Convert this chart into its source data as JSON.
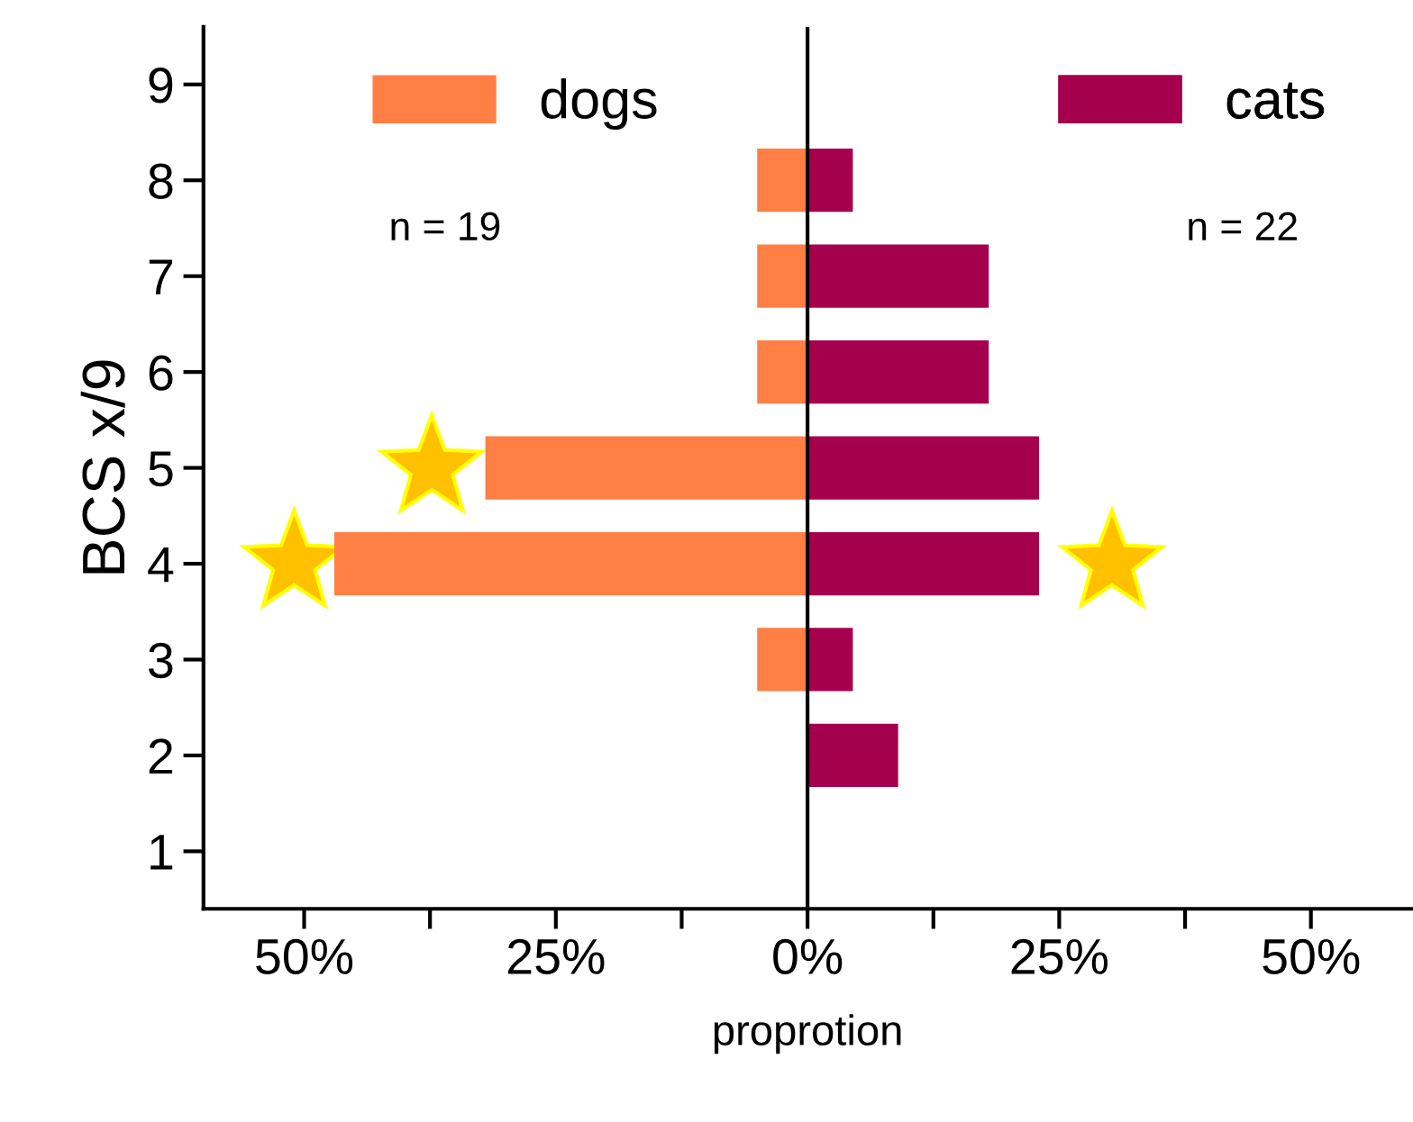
{
  "chart_data": {
    "type": "bar",
    "orientation": "horizontal",
    "stacked": true,
    "categories": [
      "9",
      "8",
      "7",
      "6",
      "5",
      "4",
      "3",
      "2",
      "1"
    ],
    "series": [
      {
        "name": "dogs",
        "color": "#ff7f45",
        "values": [
          0,
          -5,
          -5,
          -5,
          -32,
          -47,
          -5,
          0,
          0
        ]
      },
      {
        "name": "cats",
        "color": "#a5004e",
        "values": [
          0,
          4.5,
          18,
          18,
          23,
          23,
          4.5,
          9,
          0
        ]
      }
    ],
    "xlim": [
      -60,
      60
    ],
    "xticks": [
      {
        "value": -50,
        "label": "50%"
      },
      {
        "value": -37.5,
        "label": null
      },
      {
        "value": -25,
        "label": "25%"
      },
      {
        "value": -12.5,
        "label": null
      },
      {
        "value": 0,
        "label": "0%"
      },
      {
        "value": 12.5,
        "label": null
      },
      {
        "value": 25,
        "label": "25%"
      },
      {
        "value": 37.5,
        "label": null
      },
      {
        "value": 50,
        "label": "50%"
      }
    ],
    "xlabel": "proprotion",
    "ylabel": "BCS x/9",
    "ref_lines": [
      {
        "axis": "x",
        "value": 0,
        "color": "#000000"
      }
    ],
    "legend": "top",
    "grid": false,
    "annotations": [
      "n = 19",
      "n = 22"
    ]
  }
}
